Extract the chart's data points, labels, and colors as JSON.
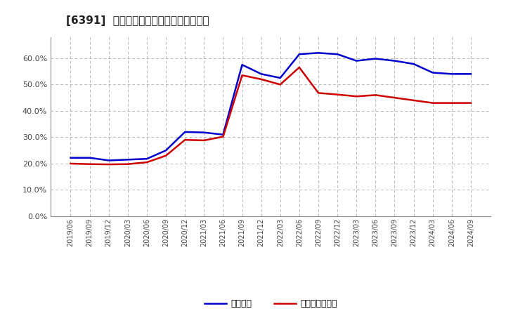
{
  "title": "[6391]  固定比率、固定長期適合率の推移",
  "blue_label": "固定比率",
  "red_label": "固定長期適合率",
  "background_color": "#ffffff",
  "plot_bg_color": "#ffffff",
  "grid_color": "#999999",
  "ylim": [
    0.0,
    0.68
  ],
  "yticks": [
    0.0,
    0.1,
    0.2,
    0.3,
    0.4,
    0.5,
    0.6
  ],
  "dates": [
    "2019/06",
    "2019/09",
    "2019/12",
    "2020/03",
    "2020/06",
    "2020/09",
    "2020/12",
    "2021/03",
    "2021/06",
    "2021/09",
    "2021/12",
    "2022/03",
    "2022/06",
    "2022/09",
    "2022/12",
    "2023/03",
    "2023/06",
    "2023/09",
    "2023/12",
    "2024/03",
    "2024/06",
    "2024/09"
  ],
  "blue_values": [
    0.222,
    0.222,
    0.212,
    0.215,
    0.218,
    0.25,
    0.32,
    0.318,
    0.31,
    0.575,
    0.54,
    0.525,
    0.615,
    0.62,
    0.615,
    0.59,
    0.598,
    0.59,
    0.578,
    0.545,
    0.54,
    0.54
  ],
  "red_values": [
    0.2,
    0.198,
    0.197,
    0.198,
    0.205,
    0.23,
    0.29,
    0.288,
    0.302,
    0.535,
    0.52,
    0.5,
    0.565,
    0.468,
    0.462,
    0.455,
    0.46,
    0.45,
    0.44,
    0.43,
    0.43,
    0.43
  ]
}
